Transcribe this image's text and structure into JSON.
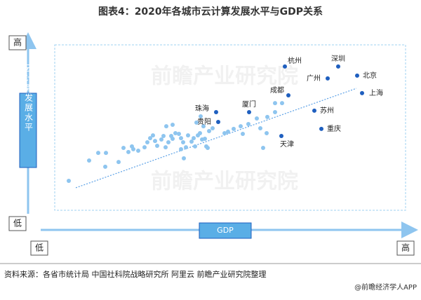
{
  "chart_data": {
    "type": "scatter",
    "title": "图表4：2020年各城市云计算发展水平与GDP关系",
    "y_label": "云计算发展水平",
    "x_label": "GDP",
    "y_high": "高",
    "y_low": "低",
    "x_low": "低",
    "x_high": "高",
    "xlim": [
      0,
      100
    ],
    "ylim": [
      0,
      100
    ],
    "series": [
      {
        "color": "#8ec5ef",
        "x": [
          4,
          9.8,
          12.4,
          14.6,
          14.4,
          18.2,
          19.6,
          21,
          22.4,
          22,
          23.8,
          25.6,
          26.4,
          27.2,
          28,
          28.6,
          29.2,
          30.4,
          31,
          31.6,
          32.4,
          33.6,
          34.4,
          31.8,
          33.2,
          35.4,
          36,
          36.6,
          37.4,
          36,
          36.8,
          38,
          39,
          39.6,
          40,
          40.8,
          41.4,
          42,
          42.8,
          43.2,
          42.4,
          44,
          40.4,
          41.6,
          48.4,
          49.4,
          51,
          53,
          53.6,
          55.2,
          57.6,
          58.6,
          60.6,
          62.8,
          62.8,
          64.8,
          59.4,
          60.4,
          33.6,
          43.6,
          45
        ],
        "y": [
          17.8,
          30.1,
          34.7,
          34.7,
          26.3,
          29.2,
          37.7,
          35.2,
          36.9,
          38.6,
          36,
          38.1,
          41.1,
          43.6,
          45.3,
          41.9,
          39,
          42.8,
          44.9,
          38.1,
          41.1,
          43.2,
          46.6,
          50.8,
          44.9,
          46.2,
          43.6,
          41.1,
          38.1,
          36.9,
          31.4,
          45.3,
          41.5,
          43.6,
          38.6,
          45.3,
          46.6,
          42.8,
          43.2,
          38.6,
          50.8,
          47.9,
          53,
          56.8,
          46.6,
          47.5,
          49.2,
          50.8,
          46.2,
          52.1,
          55.5,
          49.6,
          56.4,
          59.3,
          64.8,
          64.8,
          37.7,
          46.6,
          51.7,
          37.7,
          49.6
        ]
      },
      {
        "color": "#1f5fbf",
        "x": [
          65.6,
          80.8,
          86.2,
          77.8,
          87.6,
          66.6,
          74,
          55.4,
          46,
          46.6,
          76,
          64.6
        ],
        "y": [
          86.9,
          86.9,
          81.4,
          79.7,
          70.8,
          69.5,
          60.2,
          59.3,
          59.3,
          53.4,
          49.2,
          44.9
        ],
        "point_labels": [
          "杭州",
          "深圳",
          "北京",
          "广州",
          "上海",
          "成都",
          "苏州",
          "厦门",
          "珠海",
          "贵阳",
          "重庆",
          "天津"
        ]
      }
    ],
    "trendline": {
      "color": "#5aa0e6",
      "x": [
        6,
        86
      ],
      "y": [
        13.6,
        73.7
      ]
    },
    "watermark": "前瞻产业研究院",
    "source": "资料来源：各省市统计局 中国社科院战略研究所 阿里云 前瞻产业研究院整理",
    "footer": "@前瞻经济学人APP"
  }
}
